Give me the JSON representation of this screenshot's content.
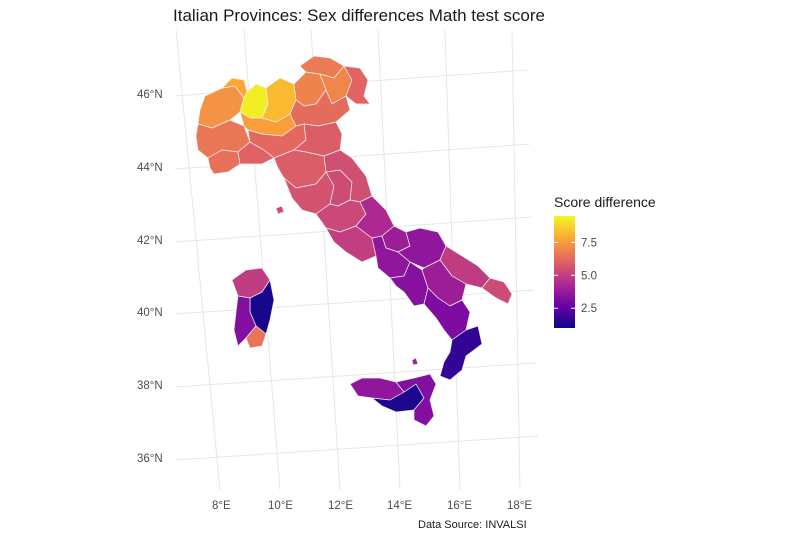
{
  "title": "Italian Provinces: Sex differences Math test score",
  "caption": "Data Source: INVALSI",
  "legend": {
    "title": "Score difference",
    "ticks": [
      "7.5",
      "5.0",
      "2.5"
    ],
    "tick_values": [
      7.5,
      5.0,
      2.5
    ],
    "range": [
      1.0,
      9.5
    ],
    "palette": [
      "#0d0887",
      "#6a00a8",
      "#b12a90",
      "#e16462",
      "#fca636",
      "#f0f921"
    ]
  },
  "axes": {
    "lat_labels": [
      "46°N",
      "44°N",
      "42°N",
      "40°N",
      "38°N",
      "36°N"
    ],
    "lon_labels": [
      "8°E",
      "10°E",
      "12°E",
      "14°E",
      "16°E",
      "18°E"
    ]
  },
  "map": {
    "type": "choropleth",
    "region_values": {
      "piemonte_north": 7.3,
      "aosta": 7.8,
      "piemonte_south": 6.6,
      "liguria_west": 6.4,
      "liguria_east": 6.0,
      "lombardia_west": 9.3,
      "lombardia_central": 8.2,
      "lombardia_east": 7.6,
      "trentino": 6.9,
      "alto_adige": 6.7,
      "veneto_north": 7.0,
      "veneto_south": 6.3,
      "friuli": 6.1,
      "emilia_west": 6.2,
      "emilia_east": 5.9,
      "toscana_north": 5.9,
      "toscana_south": 5.6,
      "umbria": 5.4,
      "marche": 5.5,
      "lazio_north": 5.3,
      "lazio_south": 5.0,
      "abruzzo": 4.3,
      "molise": 3.9,
      "campania_north": 3.6,
      "campania_south": 3.4,
      "puglia_north": 3.6,
      "puglia_central": 4.9,
      "puglia_salento": 5.4,
      "basilicata": 3.9,
      "calabria_north": 3.2,
      "calabria_south": 1.7,
      "sicily_west": 3.6,
      "sicily_south": 1.3,
      "sicily_east": 3.3,
      "sardinia_north": 4.9,
      "sardinia_east": 1.2,
      "sardinia_south": 3.3,
      "sardinia_southtip": 6.5,
      "elba": 5.5,
      "capri_islands": 4.0
    }
  }
}
